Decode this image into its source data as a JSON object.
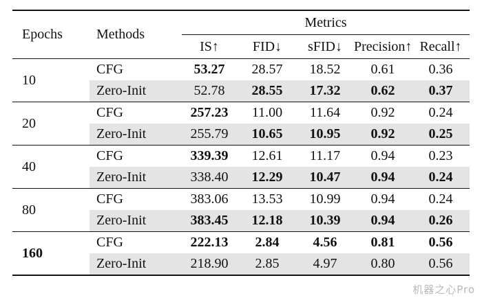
{
  "headers": {
    "epochs": "Epochs",
    "methods": "Methods",
    "metrics": "Metrics",
    "is": "IS↑",
    "fid": "FID↓",
    "sfid": "sFID↓",
    "precision": "Precision↑",
    "recall": "Recall↑"
  },
  "groups": [
    {
      "epoch": "10",
      "epoch_bold": false,
      "rows": [
        {
          "method": "CFG",
          "is": "53.27",
          "fid": "28.57",
          "sfid": "18.52",
          "precision": "0.61",
          "recall": "0.36",
          "bold": [
            "is"
          ]
        },
        {
          "method": "Zero-Init",
          "is": "52.78",
          "fid": "28.55",
          "sfid": "17.32",
          "precision": "0.62",
          "recall": "0.37",
          "bold": [
            "fid",
            "sfid",
            "precision",
            "recall"
          ]
        }
      ]
    },
    {
      "epoch": "20",
      "epoch_bold": false,
      "rows": [
        {
          "method": "CFG",
          "is": "257.23",
          "fid": "11.00",
          "sfid": "11.64",
          "precision": "0.92",
          "recall": "0.24",
          "bold": [
            "is"
          ]
        },
        {
          "method": "Zero-Init",
          "is": "255.79",
          "fid": "10.65",
          "sfid": "10.95",
          "precision": "0.92",
          "recall": "0.25",
          "bold": [
            "fid",
            "sfid",
            "precision",
            "recall"
          ]
        }
      ]
    },
    {
      "epoch": "40",
      "epoch_bold": false,
      "rows": [
        {
          "method": "CFG",
          "is": "339.39",
          "fid": "12.61",
          "sfid": "11.17",
          "precision": "0.94",
          "recall": "0.23",
          "bold": [
            "is"
          ]
        },
        {
          "method": "Zero-Init",
          "is": "338.40",
          "fid": "12.29",
          "sfid": "10.47",
          "precision": "0.94",
          "recall": "0.24",
          "bold": [
            "fid",
            "sfid",
            "precision",
            "recall"
          ]
        }
      ]
    },
    {
      "epoch": "80",
      "epoch_bold": false,
      "rows": [
        {
          "method": "CFG",
          "is": "383.06",
          "fid": "13.53",
          "sfid": "10.99",
          "precision": "0.94",
          "recall": "0.24",
          "bold": []
        },
        {
          "method": "Zero-Init",
          "is": "383.45",
          "fid": "12.18",
          "sfid": "10.39",
          "precision": "0.94",
          "recall": "0.26",
          "bold": [
            "is",
            "fid",
            "sfid",
            "precision",
            "recall"
          ]
        }
      ]
    },
    {
      "epoch": "160",
      "epoch_bold": true,
      "rows": [
        {
          "method": "CFG",
          "is": "222.13",
          "fid": "2.84",
          "sfid": "4.56",
          "precision": "0.81",
          "recall": "0.56",
          "bold": [
            "is",
            "fid",
            "sfid",
            "precision",
            "recall"
          ]
        },
        {
          "method": "Zero-Init",
          "is": "218.90",
          "fid": "2.85",
          "sfid": "4.97",
          "precision": "0.80",
          "recall": "0.56",
          "bold": []
        }
      ]
    }
  ],
  "watermark": "机器之心Pro",
  "colors": {
    "shade": "#e4e4e4",
    "rule": "#111111"
  }
}
